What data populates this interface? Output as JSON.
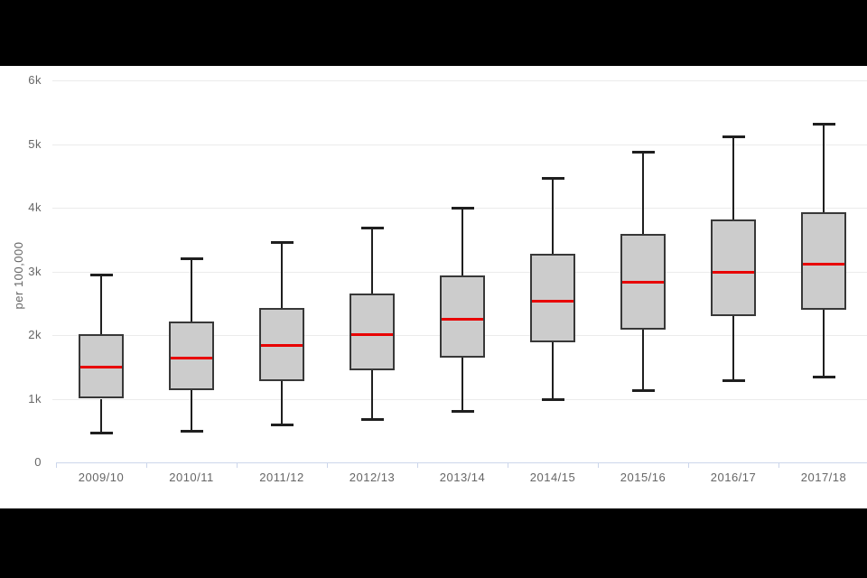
{
  "chart_data": {
    "type": "boxplot",
    "title": "",
    "xlabel": "",
    "ylabel": "per 100,000",
    "ylim": [
      0,
      6000
    ],
    "yticks": [
      0,
      1000,
      2000,
      3000,
      4000,
      5000,
      6000
    ],
    "ytick_labels": [
      "0",
      "1k",
      "2k",
      "3k",
      "4k",
      "5k",
      "6k"
    ],
    "grid": true,
    "legend": "none",
    "categories": [
      "2009/10",
      "2010/11",
      "2011/12",
      "2012/13",
      "2013/14",
      "2014/15",
      "2015/16",
      "2016/17",
      "2017/18"
    ],
    "series": [
      {
        "points": [
          {
            "low": 450,
            "q1": 1000,
            "median": 1500,
            "q3": 2010,
            "high": 2950
          },
          {
            "low": 480,
            "q1": 1140,
            "median": 1650,
            "q3": 2210,
            "high": 3200
          },
          {
            "low": 580,
            "q1": 1270,
            "median": 1840,
            "q3": 2430,
            "high": 3460
          },
          {
            "low": 670,
            "q1": 1450,
            "median": 2020,
            "q3": 2650,
            "high": 3690
          },
          {
            "low": 800,
            "q1": 1640,
            "median": 2250,
            "q3": 2930,
            "high": 4000
          },
          {
            "low": 980,
            "q1": 1890,
            "median": 2540,
            "q3": 3280,
            "high": 4470
          },
          {
            "low": 1120,
            "q1": 2080,
            "median": 2830,
            "q3": 3590,
            "high": 4880
          },
          {
            "low": 1270,
            "q1": 2300,
            "median": 3000,
            "q3": 3820,
            "high": 5120
          },
          {
            "low": 1340,
            "q1": 2400,
            "median": 3120,
            "q3": 3930,
            "high": 5320
          }
        ]
      }
    ],
    "colors": {
      "box_fill": "#cccccc",
      "box_stroke": "#383838",
      "median": "#e80000",
      "whisker": "#1f1f1f",
      "gridline": "#ebebeb",
      "axis_line": "#ccd6eb",
      "label": "#666666",
      "background": "#ffffff",
      "letterbox": "#000000"
    }
  }
}
